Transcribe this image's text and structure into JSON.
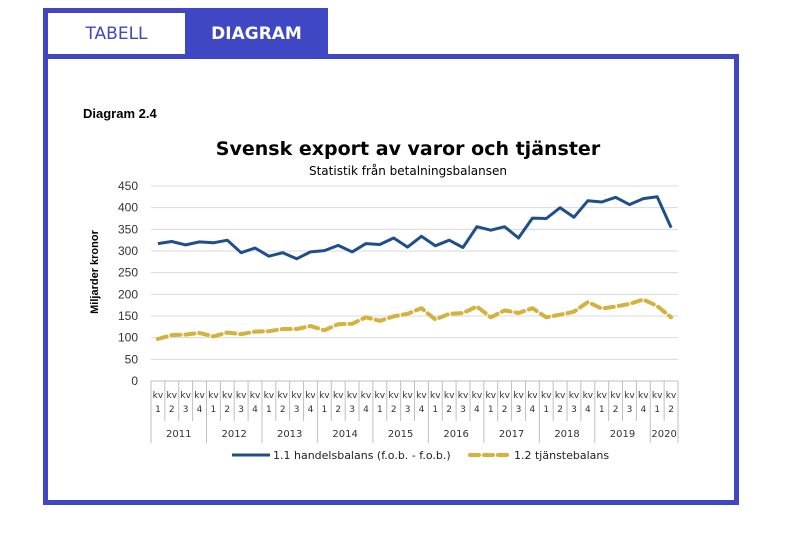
{
  "tabs": [
    {
      "label": "TABELL",
      "active": false
    },
    {
      "label": "DIAGRAM",
      "active": true
    }
  ],
  "diagram_label": "Diagram 2.4",
  "colors": {
    "frame": "#3f47c4",
    "trade": "#1f4e8c",
    "services": "#d4b23c",
    "grid": "#d9d9d9"
  },
  "chart_data": {
    "type": "line",
    "title": "Svensk export av varor och tjänster",
    "subtitle": "Statistik från betalningsbalansen",
    "xlabel": "",
    "ylabel": "Miljarder kronor",
    "ylim": [
      0,
      450
    ],
    "yticks": [
      0,
      50,
      100,
      150,
      200,
      250,
      300,
      350,
      400,
      450
    ],
    "grid": true,
    "legend_position": "bottom",
    "years": [
      {
        "label": "2011",
        "quarters": 4
      },
      {
        "label": "2012",
        "quarters": 4
      },
      {
        "label": "2013",
        "quarters": 4
      },
      {
        "label": "2014",
        "quarters": 4
      },
      {
        "label": "2015",
        "quarters": 4
      },
      {
        "label": "2016",
        "quarters": 4
      },
      {
        "label": "2017",
        "quarters": 4
      },
      {
        "label": "2018",
        "quarters": 4
      },
      {
        "label": "2019",
        "quarters": 4
      },
      {
        "label": "2020",
        "quarters": 2
      }
    ],
    "categories": [
      "kv 1",
      "kv 2",
      "kv 3",
      "kv 4",
      "kv 1",
      "kv 2",
      "kv 3",
      "kv 4",
      "kv 1",
      "kv 2",
      "kv 3",
      "kv 4",
      "kv 1",
      "kv 2",
      "kv 3",
      "kv 4",
      "kv 1",
      "kv 2",
      "kv 3",
      "kv 4",
      "kv 1",
      "kv 2",
      "kv 3",
      "kv 4",
      "kv 1",
      "kv 2",
      "kv 3",
      "kv 4",
      "kv 1",
      "kv 2",
      "kv 3",
      "kv 4",
      "kv 1",
      "kv 2",
      "kv 3",
      "kv 4",
      "kv 1",
      "kv 2"
    ],
    "series": [
      {
        "name": "1.1 handelsbalans (f.o.b. - f.o.b.)",
        "style": "solid",
        "values": [
          317,
          322,
          314,
          321,
          319,
          325,
          296,
          307,
          288,
          296,
          282,
          298,
          301,
          313,
          298,
          317,
          315,
          330,
          309,
          334,
          312,
          325,
          308,
          356,
          348,
          356,
          330,
          376,
          375,
          400,
          378,
          416,
          413,
          424,
          407,
          421,
          425,
          354
        ]
      },
      {
        "name": "1.2 tjänstebalans",
        "style": "dashed",
        "values": [
          97,
          106,
          107,
          111,
          103,
          112,
          108,
          114,
          115,
          120,
          120,
          127,
          117,
          131,
          132,
          147,
          139,
          149,
          155,
          168,
          142,
          155,
          157,
          172,
          147,
          163,
          157,
          168,
          147,
          153,
          160,
          182,
          167,
          172,
          178,
          188,
          173,
          147
        ]
      }
    ]
  }
}
